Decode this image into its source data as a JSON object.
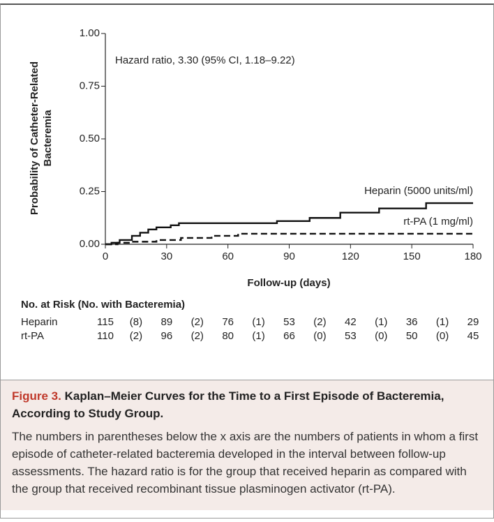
{
  "chart_data": {
    "type": "step",
    "annotation": "Hazard ratio, 3.30 (95% CI, 1.18–9.22)",
    "ylabel": [
      "Probability of Catheter-Related",
      "Bacteremia"
    ],
    "xlabel": "Follow-up (days)",
    "xlim": [
      0,
      180
    ],
    "xticks": [
      0,
      30,
      60,
      90,
      120,
      150,
      180
    ],
    "ylim": [
      0,
      1
    ],
    "yticks": [
      {
        "value": 0,
        "label": "0.00"
      },
      {
        "value": 0.25,
        "label": "0.25"
      },
      {
        "value": 0.5,
        "label": "0.50"
      },
      {
        "value": 0.75,
        "label": "0.75"
      },
      {
        "value": 1,
        "label": "1.00"
      }
    ],
    "series": [
      {
        "name": "Heparin (5000 units/ml)",
        "color": "#111111",
        "line_style": "solid",
        "x": [
          0,
          3,
          7,
          13,
          17,
          21,
          25,
          32,
          36,
          84,
          100,
          115,
          134,
          157,
          180
        ],
        "values": [
          0,
          0.007,
          0.02,
          0.04,
          0.055,
          0.07,
          0.08,
          0.09,
          0.1,
          0.11,
          0.125,
          0.15,
          0.17,
          0.195,
          0.195
        ]
      },
      {
        "name": "rt-PA (1 mg/ml)",
        "color": "#111111",
        "line_style": "dashed",
        "x": [
          0,
          6,
          12,
          25,
          37,
          52,
          65,
          180
        ],
        "values": [
          0,
          0.007,
          0.012,
          0.02,
          0.03,
          0.04,
          0.05,
          0.05
        ]
      }
    ]
  },
  "risk_table": {
    "title": "No. at Risk (No. with Bacteremia)",
    "rows": [
      {
        "label": "Heparin",
        "cells": [
          "115",
          "(8)",
          "89",
          "(2)",
          "76",
          "(1)",
          "53",
          "(2)",
          "42",
          "(1)",
          "36",
          "(1)",
          "29"
        ]
      },
      {
        "label": "rt-PA",
        "cells": [
          "110",
          "(2)",
          "96",
          "(2)",
          "80",
          "(1)",
          "66",
          "(0)",
          "53",
          "(0)",
          "50",
          "(0)",
          "45"
        ]
      }
    ]
  },
  "caption": {
    "label": "Figure 3.",
    "title": "Kaplan–Meier Curves for the Time to a First Episode of Bacteremia, According to Study Group.",
    "body": "The numbers in parentheses below the x axis are the numbers of patients in whom a first episode of catheter-related bacteremia developed in the interval between follow-up assessments. The hazard ratio is for the group that received heparin as compared with the group that received recombinant tissue plasminogen activator (rt-PA)."
  }
}
